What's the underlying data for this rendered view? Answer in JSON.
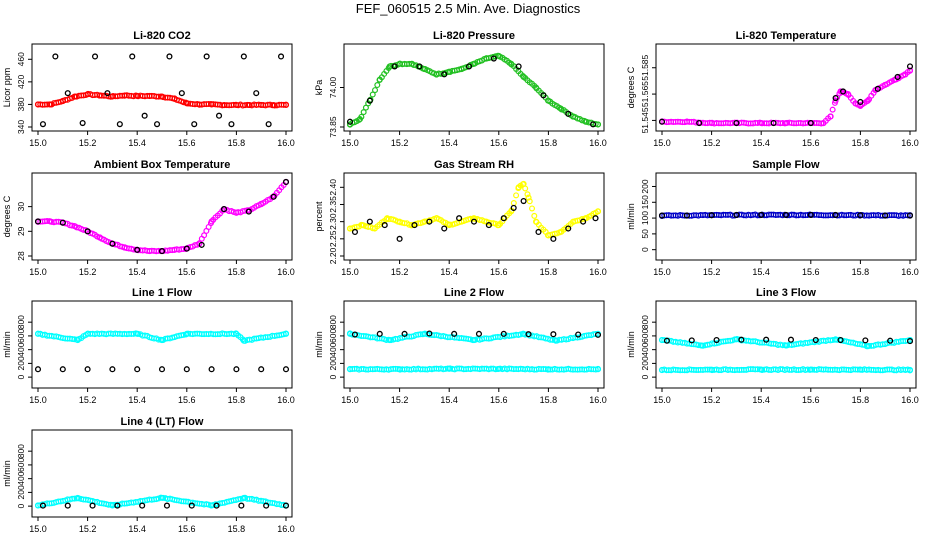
{
  "page_title": "FEF_060515  2.5 Min. Ave. Diagnostics",
  "colors": {
    "black": "#000000",
    "red": "#ff0000",
    "green": "#22c022",
    "magenta": "#ff00ff",
    "yellow": "#ffff00",
    "blue": "#0000c8",
    "cyan": "#00ffff"
  },
  "chart_data": [
    {
      "type": "scatter",
      "title": "Li-820 CO2",
      "ylabel": "Licor ppm",
      "xlim": [
        15.0,
        16.0
      ],
      "ylim": [
        340,
        480
      ],
      "yticks": [
        340,
        380,
        420,
        460
      ],
      "xticks": [
        "15.0",
        "15.2",
        "15.4",
        "15.6",
        "15.8",
        "16.0"
      ],
      "series": [
        {
          "color": "red",
          "x": [
            15.0,
            15.05,
            15.1,
            15.15,
            15.2,
            15.25,
            15.3,
            15.35,
            15.4,
            15.45,
            15.5,
            15.55,
            15.6,
            15.65,
            15.7,
            15.75,
            15.8,
            15.85,
            15.9,
            15.95,
            16.0
          ],
          "y": [
            380,
            380,
            386,
            394,
            398,
            396,
            394,
            396,
            395,
            395,
            394,
            390,
            382,
            380,
            380,
            379,
            379,
            379,
            379,
            379,
            379
          ]
        },
        {
          "color": "black",
          "x": [
            15.02,
            15.07,
            15.12,
            15.18,
            15.23,
            15.28,
            15.33,
            15.38,
            15.43,
            15.48,
            15.53,
            15.58,
            15.63,
            15.68,
            15.73,
            15.78,
            15.83,
            15.88,
            15.93,
            15.98
          ],
          "y": [
            345,
            465,
            400,
            347,
            465,
            400,
            345,
            465,
            360,
            345,
            465,
            400,
            345,
            465,
            360,
            345,
            465,
            400,
            345,
            465
          ]
        }
      ]
    },
    {
      "type": "scatter",
      "title": "Li-820 Pressure",
      "ylabel": "kPa",
      "xlim": [
        15.0,
        16.0
      ],
      "ylim": [
        73.85,
        74.15
      ],
      "yticks": [
        73.85,
        74.0
      ],
      "ytick_labels": [
        "73.85",
        "74.00"
      ],
      "xticks": [
        "15.0",
        "15.2",
        "15.4",
        "15.6",
        "15.8",
        "16.0"
      ],
      "series": [
        {
          "color": "green",
          "x": [
            15.0,
            15.04,
            15.08,
            15.12,
            15.16,
            15.2,
            15.25,
            15.3,
            15.35,
            15.4,
            15.45,
            15.5,
            15.55,
            15.6,
            15.65,
            15.7,
            15.75,
            15.8,
            15.85,
            15.9,
            15.95,
            16.0
          ],
          "y": [
            73.86,
            73.88,
            73.95,
            74.03,
            74.08,
            74.09,
            74.09,
            74.07,
            74.05,
            74.06,
            74.07,
            74.09,
            74.11,
            74.12,
            74.09,
            74.04,
            74.0,
            73.95,
            73.92,
            73.89,
            73.87,
            73.86
          ]
        },
        {
          "color": "black",
          "x": [
            15.0,
            15.08,
            15.18,
            15.28,
            15.38,
            15.48,
            15.58,
            15.68,
            15.78,
            15.88,
            15.98
          ],
          "y": [
            73.87,
            73.95,
            74.08,
            74.08,
            74.05,
            74.08,
            74.11,
            74.08,
            73.97,
            73.9,
            73.86
          ]
        }
      ]
    },
    {
      "type": "scatter",
      "title": "Li-820 Temperature",
      "ylabel": "degrees C",
      "xlim": [
        15.0,
        16.0
      ],
      "ylim": [
        51.54,
        51.6
      ],
      "yticks": [
        51.545,
        51.565,
        51.585
      ],
      "ytick_labels": [
        "51.545",
        "51.565",
        "51.585"
      ],
      "xticks": [
        "15.0",
        "15.2",
        "15.4",
        "15.6",
        "15.8",
        "16.0"
      ],
      "series": [
        {
          "color": "magenta",
          "x": [
            15.0,
            15.1,
            15.2,
            15.3,
            15.4,
            15.5,
            15.6,
            15.65,
            15.68,
            15.7,
            15.72,
            15.75,
            15.78,
            15.8,
            15.83,
            15.86,
            15.9,
            15.94,
            15.98,
            16.0
          ],
          "y": [
            51.544,
            51.544,
            51.543,
            51.543,
            51.543,
            51.543,
            51.543,
            51.543,
            51.548,
            51.56,
            51.567,
            51.565,
            51.558,
            51.556,
            51.56,
            51.568,
            51.572,
            51.576,
            51.58,
            51.583
          ]
        },
        {
          "color": "black",
          "x": [
            15.0,
            15.15,
            15.3,
            15.45,
            15.6,
            15.7,
            15.73,
            15.8,
            15.87,
            15.95,
            16.0
          ],
          "y": [
            51.544,
            51.543,
            51.543,
            51.543,
            51.543,
            51.562,
            51.567,
            51.559,
            51.569,
            51.578,
            51.586
          ]
        }
      ]
    },
    {
      "type": "scatter",
      "title": "Ambient Box Temperature",
      "ylabel": "degrees C",
      "xlim": [
        15.0,
        16.0
      ],
      "ylim": [
        28,
        31.2
      ],
      "yticks": [
        28,
        29,
        30
      ],
      "xticks": [
        "15.0",
        "15.2",
        "15.4",
        "15.6",
        "15.8",
        "16.0"
      ],
      "series": [
        {
          "color": "magenta",
          "x": [
            15.0,
            15.05,
            15.1,
            15.15,
            15.2,
            15.25,
            15.3,
            15.35,
            15.4,
            15.45,
            15.5,
            15.55,
            15.6,
            15.65,
            15.7,
            15.75,
            15.8,
            15.85,
            15.9,
            15.95,
            16.0
          ],
          "y": [
            29.4,
            29.4,
            29.35,
            29.2,
            29.0,
            28.75,
            28.5,
            28.35,
            28.25,
            28.2,
            28.2,
            28.25,
            28.3,
            28.5,
            29.4,
            29.9,
            29.75,
            29.85,
            30.1,
            30.4,
            31.0
          ]
        },
        {
          "color": "black",
          "x": [
            15.0,
            15.1,
            15.2,
            15.3,
            15.4,
            15.5,
            15.6,
            15.66,
            15.75,
            15.85,
            15.95,
            16.0
          ],
          "y": [
            29.4,
            29.35,
            29.0,
            28.5,
            28.25,
            28.2,
            28.3,
            28.45,
            29.9,
            29.8,
            30.4,
            31.0
          ]
        }
      ]
    },
    {
      "type": "scatter",
      "title": "Gas Stream RH",
      "ylabel": "percent",
      "xlim": [
        15.0,
        16.0
      ],
      "ylim": [
        2.2,
        2.43
      ],
      "yticks": [
        2.2,
        2.25,
        2.3,
        2.35,
        2.4
      ],
      "ytick_labels": [
        "2.20",
        "2.25",
        "2.30",
        "2.35",
        "2.40"
      ],
      "xticks": [
        "15.0",
        "15.2",
        "15.4",
        "15.6",
        "15.8",
        "16.0"
      ],
      "series": [
        {
          "color": "yellow",
          "x": [
            15.0,
            15.05,
            15.1,
            15.15,
            15.2,
            15.25,
            15.3,
            15.35,
            15.4,
            15.45,
            15.5,
            15.55,
            15.6,
            15.65,
            15.68,
            15.7,
            15.72,
            15.75,
            15.8,
            15.85,
            15.9,
            15.95,
            16.0
          ],
          "y": [
            2.28,
            2.29,
            2.28,
            2.31,
            2.3,
            2.29,
            2.3,
            2.31,
            2.29,
            2.3,
            2.31,
            2.3,
            2.29,
            2.33,
            2.4,
            2.41,
            2.37,
            2.3,
            2.26,
            2.27,
            2.3,
            2.31,
            2.33
          ]
        },
        {
          "color": "black",
          "x": [
            15.02,
            15.08,
            15.14,
            15.2,
            15.26,
            15.32,
            15.38,
            15.44,
            15.5,
            15.56,
            15.62,
            15.66,
            15.7,
            15.76,
            15.82,
            15.88,
            15.94,
            15.99
          ],
          "y": [
            2.27,
            2.3,
            2.29,
            2.25,
            2.29,
            2.3,
            2.28,
            2.31,
            2.3,
            2.29,
            2.31,
            2.34,
            2.36,
            2.27,
            2.25,
            2.28,
            2.3,
            2.31
          ]
        }
      ]
    },
    {
      "type": "scatter",
      "title": "Sample Flow",
      "ylabel": "ml/min",
      "xlim": [
        15.0,
        16.0
      ],
      "ylim": [
        -20,
        230
      ],
      "yticks": [
        0,
        50,
        100,
        150,
        200
      ],
      "xticks": [
        "15.0",
        "15.2",
        "15.4",
        "15.6",
        "15.8",
        "16.0"
      ],
      "series": [
        {
          "color": "blue",
          "x": [
            15.0,
            15.2,
            15.4,
            15.6,
            15.8,
            16.0
          ],
          "y": [
            108,
            109,
            110,
            110,
            109,
            108
          ]
        },
        {
          "color": "black",
          "x": [
            15.0,
            15.1,
            15.2,
            15.3,
            15.4,
            15.5,
            15.6,
            15.7,
            15.8,
            15.9,
            16.0
          ],
          "y": [
            108,
            108,
            109,
            110,
            110,
            110,
            110,
            110,
            109,
            108,
            108
          ]
        }
      ]
    },
    {
      "type": "scatter",
      "title": "Line 1 Flow",
      "ylabel": "ml/min",
      "xlim": [
        15.0,
        16.0
      ],
      "ylim": [
        -100,
        1050
      ],
      "yticks": [
        0,
        200,
        400,
        600,
        800
      ],
      "xticks": [
        "15.0",
        "15.2",
        "15.4",
        "15.6",
        "15.8",
        "16.0"
      ],
      "series": [
        {
          "color": "cyan",
          "x": [
            15.0,
            15.16,
            15.2,
            15.4,
            15.5,
            15.6,
            15.8,
            15.83,
            16.0
          ],
          "y": [
            630,
            540,
            630,
            630,
            540,
            630,
            630,
            530,
            630
          ]
        },
        {
          "color": "black",
          "x": [
            15.0,
            15.1,
            15.2,
            15.3,
            15.4,
            15.5,
            15.6,
            15.7,
            15.8,
            15.9,
            16.0
          ],
          "y": [
            115,
            115,
            115,
            115,
            115,
            115,
            115,
            115,
            115,
            115,
            115
          ]
        }
      ]
    },
    {
      "type": "scatter",
      "title": "Line 2 Flow",
      "ylabel": "ml/min",
      "xlim": [
        15.0,
        16.0
      ],
      "ylim": [
        -100,
        1050
      ],
      "yticks": [
        0,
        200,
        400,
        600,
        800
      ],
      "xticks": [
        "15.0",
        "15.2",
        "15.4",
        "15.6",
        "15.8",
        "16.0"
      ],
      "series": [
        {
          "color": "cyan",
          "x": [
            15.0,
            15.16,
            15.3,
            15.5,
            15.7,
            15.83,
            16.0
          ],
          "y": [
            630,
            540,
            630,
            540,
            630,
            530,
            630
          ]
        },
        {
          "color": "cyan",
          "x": [
            15.0,
            15.2,
            15.4,
            15.6,
            15.8,
            16.0
          ],
          "y": [
            115,
            115,
            120,
            120,
            115,
            115
          ]
        },
        {
          "color": "black",
          "x": [
            15.02,
            15.12,
            15.22,
            15.32,
            15.42,
            15.52,
            15.62,
            15.72,
            15.82,
            15.92,
            16.0
          ],
          "y": [
            620,
            630,
            630,
            635,
            630,
            630,
            630,
            625,
            625,
            620,
            615
          ]
        }
      ]
    },
    {
      "type": "scatter",
      "title": "Line 3 Flow",
      "ylabel": "ml/min",
      "xlim": [
        15.0,
        16.0
      ],
      "ylim": [
        -100,
        1050
      ],
      "yticks": [
        0,
        200,
        400,
        600,
        800
      ],
      "xticks": [
        "15.0",
        "15.2",
        "15.4",
        "15.6",
        "15.8",
        "16.0"
      ],
      "series": [
        {
          "color": "cyan",
          "x": [
            15.0,
            15.16,
            15.3,
            15.5,
            15.7,
            15.83,
            16.0
          ],
          "y": [
            540,
            460,
            550,
            460,
            550,
            450,
            540
          ]
        },
        {
          "color": "cyan",
          "x": [
            15.0,
            15.2,
            15.4,
            15.6,
            15.8,
            16.0
          ],
          "y": [
            105,
            108,
            110,
            110,
            108,
            105
          ]
        },
        {
          "color": "black",
          "x": [
            15.02,
            15.12,
            15.22,
            15.32,
            15.42,
            15.52,
            15.62,
            15.72,
            15.82,
            15.92,
            16.0
          ],
          "y": [
            530,
            535,
            540,
            545,
            545,
            545,
            540,
            540,
            535,
            530,
            525
          ]
        }
      ]
    },
    {
      "type": "scatter",
      "title": "Line 4 (LT) Flow",
      "ylabel": "ml/min",
      "xlim": [
        15.0,
        16.0
      ],
      "ylim": [
        -100,
        1050
      ],
      "yticks": [
        0,
        200,
        400,
        600,
        800
      ],
      "xticks": [
        "15.0",
        "15.2",
        "15.4",
        "15.6",
        "15.8",
        "16.0"
      ],
      "series": [
        {
          "color": "cyan",
          "x": [
            15.0,
            15.16,
            15.3,
            15.5,
            15.7,
            15.83,
            16.0
          ],
          "y": [
            10,
            120,
            10,
            120,
            10,
            120,
            10
          ]
        },
        {
          "color": "black",
          "x": [
            15.02,
            15.12,
            15.22,
            15.32,
            15.42,
            15.52,
            15.62,
            15.72,
            15.82,
            15.92,
            16.0
          ],
          "y": [
            8,
            8,
            8,
            8,
            8,
            8,
            8,
            8,
            8,
            8,
            8
          ]
        }
      ]
    }
  ]
}
